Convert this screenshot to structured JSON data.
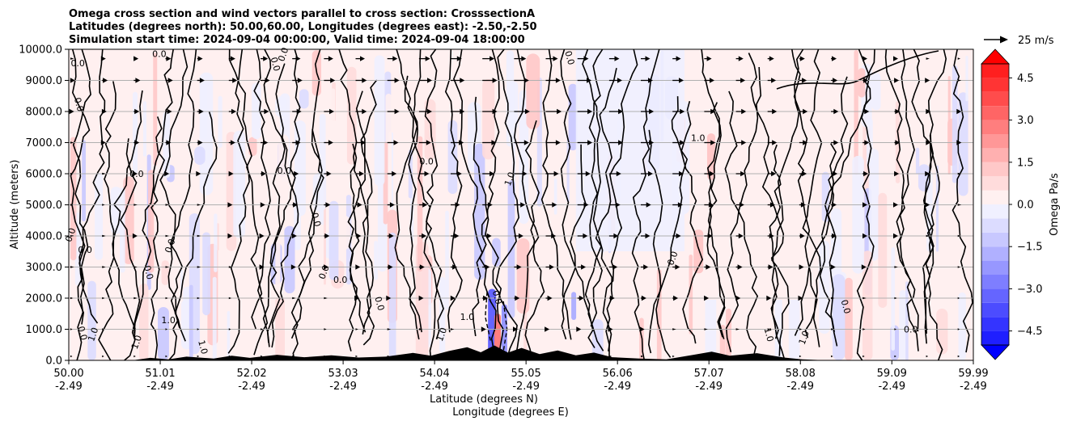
{
  "chart_data": {
    "type": "contourf",
    "title_lines": [
      "Omega cross section and wind vectors parallel to cross section: CrosssectionA",
      "Latitudes (degrees north): 50.00,60.00, Longitudes (degrees east): -2.50,-2.50",
      "Simulation start time: 2024-09-04 00:00:00, Valid time: 2024-09-04 18:00:00"
    ],
    "ylabel": "Altitude (meters)",
    "xlabel_lines": [
      "Latitude (degrees N)",
      "Longitude (degrees E)"
    ],
    "ylim": [
      0,
      10000
    ],
    "xlim": [
      50.0,
      59.99
    ],
    "y_ticks": [
      {
        "value": 0,
        "label": "0.0"
      },
      {
        "value": 1000,
        "label": "1000.0"
      },
      {
        "value": 2000,
        "label": "2000.0"
      },
      {
        "value": 3000,
        "label": "3000.0"
      },
      {
        "value": 4000,
        "label": "4000.0"
      },
      {
        "value": 5000,
        "label": "5000.0"
      },
      {
        "value": 6000,
        "label": "6000.0"
      },
      {
        "value": 7000,
        "label": "7000.0"
      },
      {
        "value": 8000,
        "label": "8000.0"
      },
      {
        "value": 9000,
        "label": "9000.0"
      },
      {
        "value": 10000,
        "label": "10000.0"
      }
    ],
    "x_ticks": [
      {
        "value": 50.0,
        "lat": "50.00",
        "lon": "-2.49"
      },
      {
        "value": 51.01,
        "lat": "51.01",
        "lon": "-2.49"
      },
      {
        "value": 52.02,
        "lat": "52.02",
        "lon": "-2.49"
      },
      {
        "value": 53.03,
        "lat": "53.03",
        "lon": "-2.49"
      },
      {
        "value": 54.04,
        "lat": "54.04",
        "lon": "-2.49"
      },
      {
        "value": 55.05,
        "lat": "55.05",
        "lon": "-2.49"
      },
      {
        "value": 56.06,
        "lat": "56.06",
        "lon": "-2.49"
      },
      {
        "value": 57.07,
        "lat": "57.07",
        "lon": "-2.49"
      },
      {
        "value": 58.08,
        "lat": "58.08",
        "lon": "-2.49"
      },
      {
        "value": 59.09,
        "lat": "59.09",
        "lon": "-2.49"
      },
      {
        "value": 59.99,
        "lat": "59.99",
        "lon": "-2.49"
      }
    ],
    "grid": "horizontal",
    "colorbar": {
      "label": "Omega Pa/s",
      "range": [
        -5,
        5
      ],
      "extend": "both",
      "ticks": [
        {
          "value": 4.5,
          "label": "4.5"
        },
        {
          "value": 3.0,
          "label": "3.0"
        },
        {
          "value": 1.5,
          "label": "1.5"
        },
        {
          "value": 0.0,
          "label": "0.0"
        },
        {
          "value": -1.5,
          "label": "−1.5"
        },
        {
          "value": -3.0,
          "label": "−3.0"
        },
        {
          "value": -4.5,
          "label": "−4.5"
        }
      ],
      "levels": [
        -5,
        -4.5,
        -4,
        -3.5,
        -3,
        -2.5,
        -2,
        -1.5,
        -1,
        -0.5,
        0,
        0.5,
        1,
        1.5,
        2,
        2.5,
        3,
        3.5,
        4,
        4.5,
        5
      ],
      "colors": {
        "-4.75": "#1f1fff",
        "-4.25": "#3434ff",
        "-3.75": "#4c4cff",
        "-3.25": "#6565ff",
        "-2.75": "#7e7eff",
        "-2.25": "#9797ff",
        "-1.75": "#b0b0ff",
        "-1.25": "#c8c8ff",
        "-0.75": "#dcdcff",
        "-0.25": "#f0f0ff",
        "0.25": "#fff0f0",
        "0.75": "#ffdcdc",
        "1.25": "#ffc8c8",
        "1.75": "#ffb0b0",
        "2.25": "#ff9797",
        "2.75": "#ff7e7e",
        "3.25": "#ff6565",
        "3.75": "#ff4c4c",
        "4.25": "#ff3434",
        "4.75": "#ff1f1f"
      },
      "under_color": "#0000ff",
      "over_color": "#ff0000"
    },
    "quiver_key": {
      "label": "25 m/s",
      "value": 25
    },
    "wind_arrow_columns": [
      {
        "lat": 50.0,
        "speeds": [
          0,
          1,
          2,
          3,
          2,
          2,
          2,
          3,
          4,
          5,
          3
        ]
      },
      {
        "lat": 50.35,
        "speeds": [
          0,
          1,
          2,
          3,
          3,
          2,
          3,
          4,
          5,
          6,
          4
        ]
      },
      {
        "lat": 50.7,
        "speeds": [
          1,
          1,
          3,
          3,
          4,
          3,
          4,
          6,
          6,
          7,
          5
        ]
      },
      {
        "lat": 51.05,
        "speeds": [
          1,
          1,
          2,
          3,
          3,
          3,
          4,
          6,
          7,
          8,
          6
        ]
      },
      {
        "lat": 51.4,
        "speeds": [
          0,
          1,
          2,
          3,
          3,
          3,
          4,
          6,
          7,
          8,
          6
        ]
      },
      {
        "lat": 51.75,
        "speeds": [
          1,
          1,
          2,
          3,
          4,
          4,
          5,
          7,
          8,
          9,
          7
        ]
      },
      {
        "lat": 52.1,
        "speeds": [
          1,
          2,
          3,
          4,
          4,
          5,
          6,
          8,
          9,
          10,
          8
        ]
      },
      {
        "lat": 52.45,
        "speeds": [
          1,
          2,
          3,
          4,
          5,
          6,
          7,
          9,
          10,
          11,
          9
        ]
      },
      {
        "lat": 52.8,
        "speeds": [
          1,
          2,
          3,
          5,
          6,
          7,
          8,
          10,
          11,
          12,
          10
        ]
      },
      {
        "lat": 53.15,
        "speeds": [
          1,
          2,
          4,
          5,
          6,
          7,
          9,
          11,
          12,
          12,
          10
        ]
      },
      {
        "lat": 53.5,
        "speeds": [
          1,
          3,
          4,
          6,
          7,
          8,
          10,
          12,
          13,
          13,
          11
        ]
      },
      {
        "lat": 53.85,
        "speeds": [
          1,
          3,
          5,
          6,
          8,
          9,
          11,
          13,
          14,
          14,
          12
        ]
      },
      {
        "lat": 54.2,
        "speeds": [
          2,
          3,
          5,
          7,
          9,
          10,
          12,
          14,
          15,
          15,
          12
        ]
      },
      {
        "lat": 54.55,
        "speeds": [
          2,
          4,
          6,
          8,
          10,
          11,
          13,
          15,
          16,
          16,
          13
        ]
      },
      {
        "lat": 54.9,
        "speeds": [
          2,
          4,
          6,
          8,
          10,
          12,
          14,
          16,
          17,
          16,
          13
        ]
      },
      {
        "lat": 55.25,
        "speeds": [
          2,
          4,
          7,
          9,
          11,
          12,
          14,
          16,
          17,
          16,
          13
        ]
      },
      {
        "lat": 55.6,
        "speeds": [
          2,
          4,
          7,
          9,
          11,
          12,
          14,
          16,
          16,
          15,
          12
        ]
      },
      {
        "lat": 55.95,
        "speeds": [
          2,
          4,
          6,
          9,
          10,
          12,
          13,
          15,
          15,
          14,
          11
        ]
      },
      {
        "lat": 56.3,
        "speeds": [
          2,
          4,
          6,
          8,
          10,
          11,
          13,
          14,
          14,
          13,
          10
        ]
      },
      {
        "lat": 56.65,
        "speeds": [
          1,
          3,
          6,
          8,
          9,
          11,
          12,
          13,
          13,
          12,
          9
        ]
      },
      {
        "lat": 57.0,
        "speeds": [
          1,
          3,
          5,
          7,
          9,
          10,
          11,
          12,
          12,
          11,
          8
        ]
      },
      {
        "lat": 57.35,
        "speeds": [
          1,
          3,
          5,
          7,
          8,
          9,
          10,
          11,
          11,
          10,
          8
        ]
      },
      {
        "lat": 57.7,
        "speeds": [
          1,
          2,
          4,
          6,
          7,
          8,
          9,
          10,
          10,
          9,
          7
        ]
      },
      {
        "lat": 58.05,
        "speeds": [
          1,
          2,
          4,
          5,
          6,
          7,
          8,
          9,
          9,
          8,
          6
        ]
      },
      {
        "lat": 58.4,
        "speeds": [
          1,
          2,
          3,
          5,
          6,
          6,
          7,
          8,
          8,
          7,
          6
        ]
      },
      {
        "lat": 58.75,
        "speeds": [
          1,
          2,
          3,
          4,
          5,
          5,
          6,
          7,
          7,
          6,
          5
        ]
      },
      {
        "lat": 59.1,
        "speeds": [
          0,
          1,
          2,
          3,
          4,
          4,
          5,
          6,
          6,
          5,
          4
        ]
      },
      {
        "lat": 59.45,
        "speeds": [
          0,
          1,
          2,
          3,
          3,
          4,
          4,
          5,
          5,
          4,
          3
        ]
      },
      {
        "lat": 59.8,
        "speeds": [
          0,
          1,
          1,
          2,
          2,
          3,
          3,
          4,
          4,
          3,
          2
        ]
      }
    ],
    "contour_labels": [
      {
        "lat": 50.1,
        "alt": 9450,
        "text": "0.0"
      },
      {
        "lat": 50.08,
        "alt": 8200,
        "text": "0.0"
      },
      {
        "lat": 50.05,
        "alt": 4000,
        "text": "0.0"
      },
      {
        "lat": 50.18,
        "alt": 3450,
        "text": "0.0"
      },
      {
        "lat": 50.12,
        "alt": 850,
        "text": "0.0"
      },
      {
        "lat": 50.3,
        "alt": 800,
        "text": "1.0"
      },
      {
        "lat": 50.75,
        "alt": 5900,
        "text": "0.0"
      },
      {
        "lat": 50.85,
        "alt": 2800,
        "text": "0.0"
      },
      {
        "lat": 50.78,
        "alt": 550,
        "text": "1.0"
      },
      {
        "lat": 51.1,
        "alt": 1200,
        "text": "1.0"
      },
      {
        "lat": 51.45,
        "alt": 400,
        "text": "1.0"
      },
      {
        "lat": 51.15,
        "alt": 3650,
        "text": "0.0"
      },
      {
        "lat": 51.0,
        "alt": 9750,
        "text": "0.0"
      },
      {
        "lat": 52.25,
        "alt": 9500,
        "text": "0.0"
      },
      {
        "lat": 52.4,
        "alt": 9800,
        "text": "0.0"
      },
      {
        "lat": 52.38,
        "alt": 6000,
        "text": "0.0"
      },
      {
        "lat": 52.7,
        "alt": 4500,
        "text": "0.0"
      },
      {
        "lat": 52.85,
        "alt": 2800,
        "text": "0.0"
      },
      {
        "lat": 53.0,
        "alt": 2500,
        "text": "0.0"
      },
      {
        "lat": 53.4,
        "alt": 1800,
        "text": "0.0"
      },
      {
        "lat": 54.15,
        "alt": 800,
        "text": "1.0"
      },
      {
        "lat": 54.4,
        "alt": 1300,
        "text": "1.0"
      },
      {
        "lat": 54.7,
        "alt": 2000,
        "text": "0.0"
      },
      {
        "lat": 54.9,
        "alt": 5800,
        "text": "1.0"
      },
      {
        "lat": 53.95,
        "alt": 6300,
        "text": "0.0"
      },
      {
        "lat": 55.5,
        "alt": 9700,
        "text": "0.0"
      },
      {
        "lat": 56.7,
        "alt": 3250,
        "text": "0.0"
      },
      {
        "lat": 56.95,
        "alt": 7050,
        "text": "1.0"
      },
      {
        "lat": 57.7,
        "alt": 800,
        "text": "1.0"
      },
      {
        "lat": 58.15,
        "alt": 700,
        "text": "1.0"
      },
      {
        "lat": 59.3,
        "alt": 900,
        "text": "0.0"
      },
      {
        "lat": 58.55,
        "alt": 1700,
        "text": "0.0"
      }
    ],
    "terrain": [
      {
        "lat": 50.0,
        "alt": 0
      },
      {
        "lat": 50.7,
        "alt": 0
      },
      {
        "lat": 50.9,
        "alt": 80
      },
      {
        "lat": 51.1,
        "alt": 30
      },
      {
        "lat": 51.3,
        "alt": 120
      },
      {
        "lat": 51.6,
        "alt": 60
      },
      {
        "lat": 51.8,
        "alt": 150
      },
      {
        "lat": 52.0,
        "alt": 80
      },
      {
        "lat": 52.3,
        "alt": 180
      },
      {
        "lat": 52.6,
        "alt": 100
      },
      {
        "lat": 52.9,
        "alt": 160
      },
      {
        "lat": 53.2,
        "alt": 90
      },
      {
        "lat": 53.5,
        "alt": 120
      },
      {
        "lat": 53.8,
        "alt": 240
      },
      {
        "lat": 54.0,
        "alt": 150
      },
      {
        "lat": 54.2,
        "alt": 300
      },
      {
        "lat": 54.4,
        "alt": 420
      },
      {
        "lat": 54.55,
        "alt": 260
      },
      {
        "lat": 54.7,
        "alt": 480
      },
      {
        "lat": 54.85,
        "alt": 250
      },
      {
        "lat": 55.0,
        "alt": 400
      },
      {
        "lat": 55.2,
        "alt": 200
      },
      {
        "lat": 55.4,
        "alt": 320
      },
      {
        "lat": 55.6,
        "alt": 160
      },
      {
        "lat": 55.8,
        "alt": 250
      },
      {
        "lat": 56.0,
        "alt": 100
      },
      {
        "lat": 56.3,
        "alt": 60
      },
      {
        "lat": 56.6,
        "alt": 30
      },
      {
        "lat": 56.9,
        "alt": 180
      },
      {
        "lat": 57.1,
        "alt": 280
      },
      {
        "lat": 57.3,
        "alt": 150
      },
      {
        "lat": 57.6,
        "alt": 230
      },
      {
        "lat": 57.9,
        "alt": 90
      },
      {
        "lat": 58.1,
        "alt": 30
      },
      {
        "lat": 58.4,
        "alt": 0
      },
      {
        "lat": 59.99,
        "alt": 0
      }
    ]
  }
}
